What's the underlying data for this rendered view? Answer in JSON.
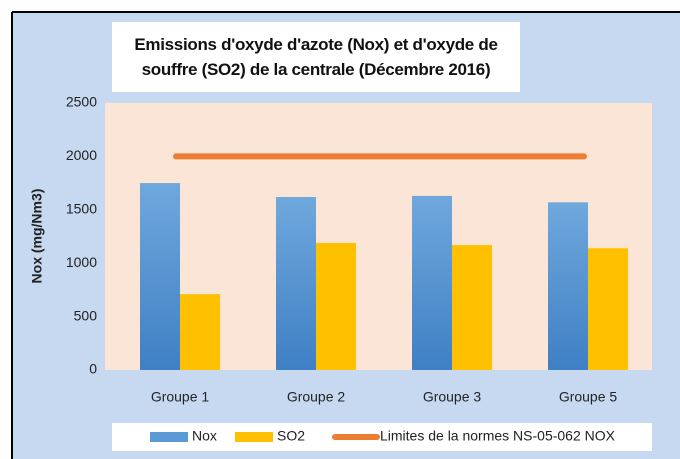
{
  "chart_data": {
    "type": "bar",
    "title": "Emissions d'oxyde d'azote (Nox) et d'oxyde de souffre (SO2) de la centrale (Décembre 2016)",
    "y_label": "Nox (mg/Nm3)",
    "categories": [
      "Groupe 1",
      "Groupe 2",
      "Groupe 3",
      "Groupe 5"
    ],
    "series": [
      {
        "name": "Nox",
        "color": "#5b9bd5",
        "values": [
          1750,
          1620,
          1630,
          1570
        ]
      },
      {
        "name": "SO2",
        "color": "#ffc000",
        "values": [
          710,
          1190,
          1170,
          1140
        ]
      },
      {
        "name": "Limites de la normes NS-05-062 NOX",
        "color": "#ed7d31",
        "type": "line",
        "values": [
          2000,
          2000,
          2000,
          2000
        ]
      }
    ],
    "ylim": [
      0,
      2500
    ],
    "yticks": [
      0,
      500,
      1000,
      1500,
      2000,
      2500
    ],
    "grid": false,
    "legend": "bottom"
  }
}
